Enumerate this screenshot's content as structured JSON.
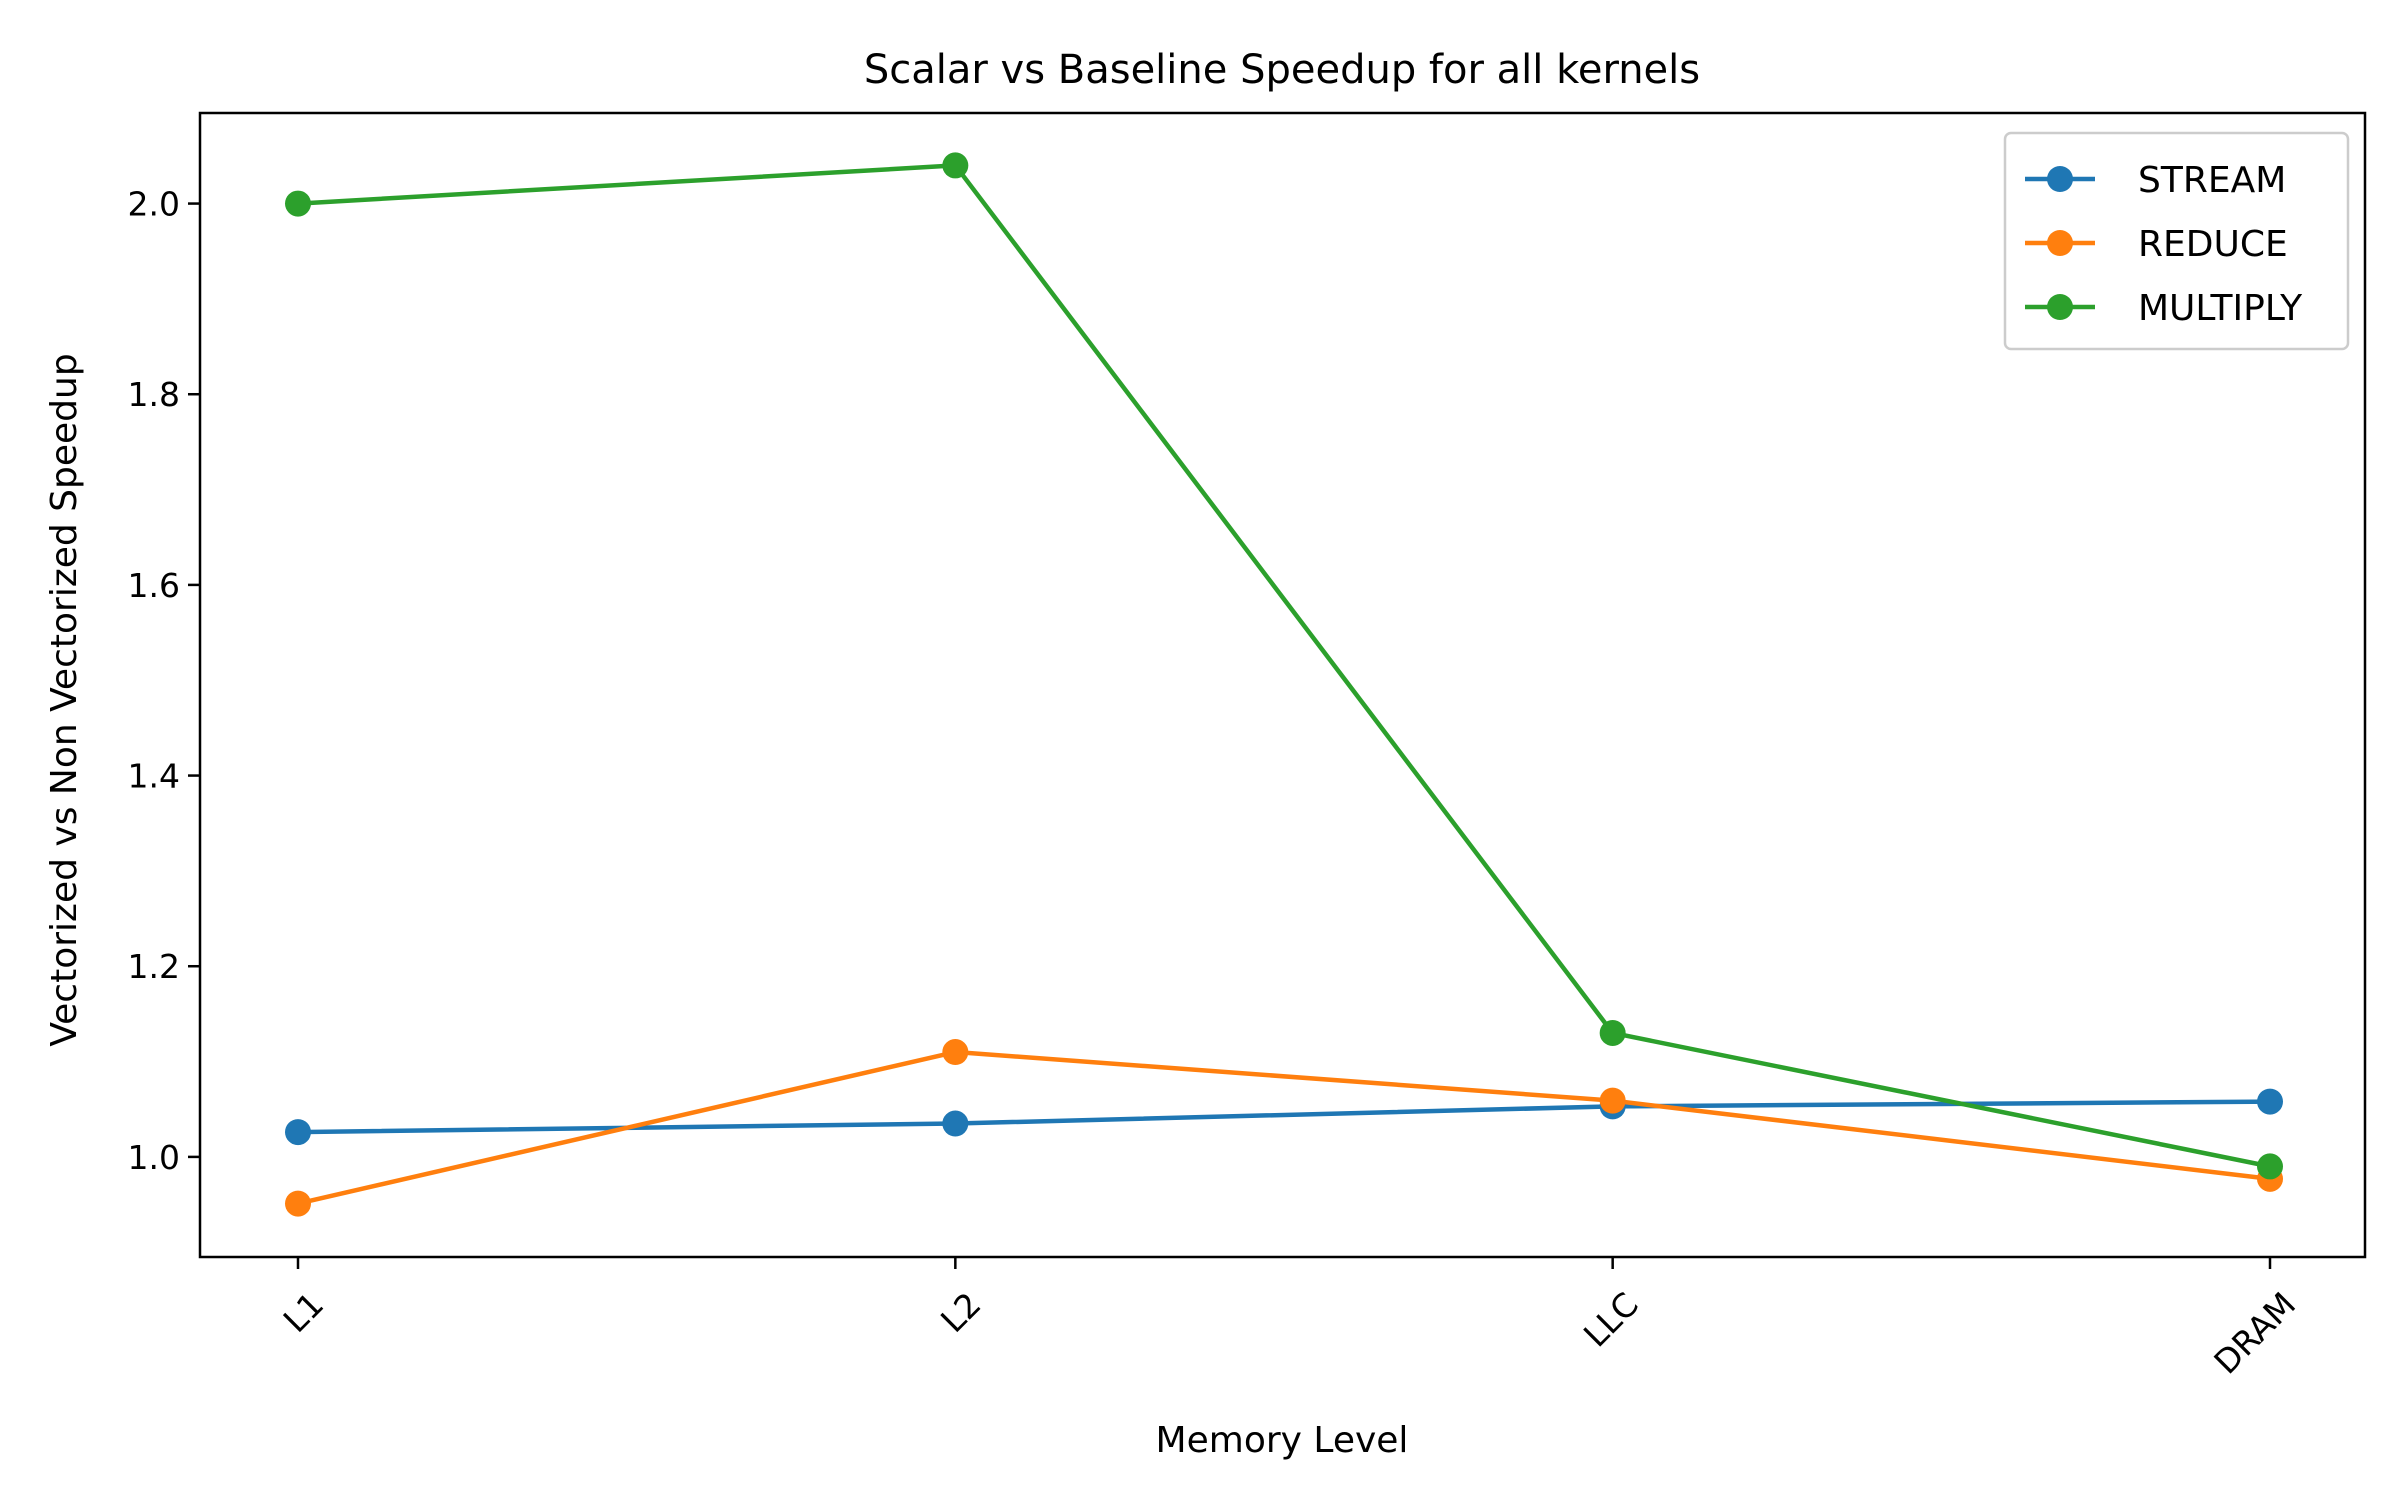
{
  "chart_data": {
    "type": "line",
    "title": "Scalar vs Baseline Speedup for all kernels",
    "xlabel": "Memory Level",
    "ylabel": "Vectorized vs Non Vectorized Speedup",
    "categories": [
      "L1",
      "L2",
      "LLC",
      "DRAM"
    ],
    "ylim": [
      0.895,
      2.095
    ],
    "yticks": [
      "1.0",
      "1.2",
      "1.4",
      "1.6",
      "1.8",
      "2.0"
    ],
    "ytick_values": [
      1.0,
      1.2,
      1.4,
      1.6,
      1.8,
      2.0
    ],
    "grid": false,
    "legend_position": "top-right",
    "series": [
      {
        "name": "STREAM",
        "color": "#1f77b4",
        "values": [
          1.026,
          1.035,
          1.053,
          1.058
        ]
      },
      {
        "name": "REDUCE",
        "color": "#ff7f0e",
        "values": [
          0.951,
          1.11,
          1.059,
          0.977
        ]
      },
      {
        "name": "MULTIPLY",
        "color": "#2ca02c",
        "values": [
          2.0,
          2.04,
          1.13,
          0.99
        ]
      }
    ]
  }
}
